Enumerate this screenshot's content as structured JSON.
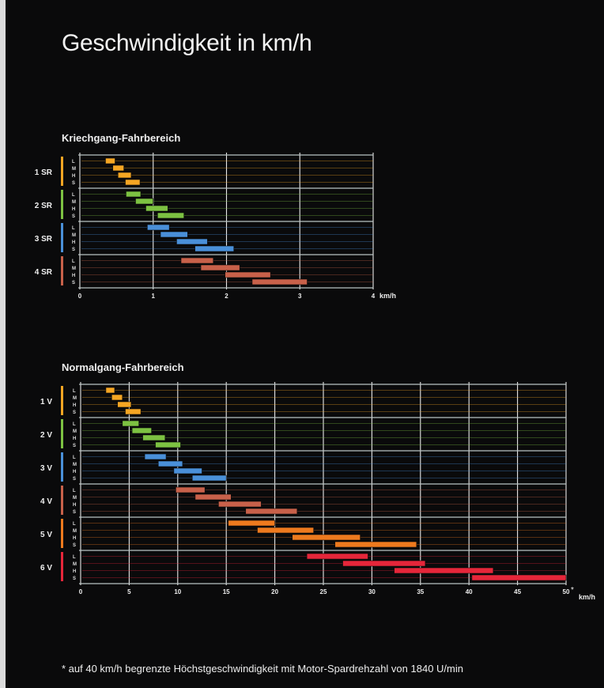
{
  "title": "Geschwindigkeit in km/h",
  "footnote": "* auf 40 km/h begrenzte Höchstgeschwindigkeit mit Motor-Spardrehzahl von 1840 U/min",
  "colors": {
    "group1": "#f5a623",
    "group2": "#7dc242",
    "group3": "#4a90d9",
    "group4": "#c8614a",
    "group5": "#ee7a1e",
    "group6": "#e6263a"
  },
  "chart_data": [
    {
      "type": "bar",
      "title": "Kriechgang-Fahrbereich",
      "unit": "km/h",
      "xlim": [
        0,
        4
      ],
      "xticks": [
        0,
        1,
        2,
        3,
        4
      ],
      "xtick_labels": [
        "0",
        "1",
        "2",
        "3",
        "4"
      ],
      "row_labels": [
        "L",
        "M",
        "H",
        "S"
      ],
      "groups": [
        {
          "label": "1 SR",
          "color": "#f5a623",
          "rows": [
            [
              0.35,
              0.48
            ],
            [
              0.45,
              0.6
            ],
            [
              0.52,
              0.7
            ],
            [
              0.62,
              0.82
            ]
          ]
        },
        {
          "label": "2 SR",
          "color": "#7dc242",
          "rows": [
            [
              0.63,
              0.83
            ],
            [
              0.76,
              1.0
            ],
            [
              0.9,
              1.2
            ],
            [
              1.06,
              1.42
            ]
          ]
        },
        {
          "label": "3 SR",
          "color": "#4a90d9",
          "rows": [
            [
              0.92,
              1.22
            ],
            [
              1.1,
              1.47
            ],
            [
              1.32,
              1.74
            ],
            [
              1.57,
              2.1
            ]
          ]
        },
        {
          "label": "4 SR",
          "color": "#c8614a",
          "rows": [
            [
              1.38,
              1.82
            ],
            [
              1.65,
              2.18
            ],
            [
              1.98,
              2.6
            ],
            [
              2.35,
              3.1
            ]
          ]
        }
      ]
    },
    {
      "type": "bar",
      "title": "Normalgang-Fahrbereich",
      "unit": "km/h",
      "xlim": [
        0,
        50
      ],
      "xticks": [
        0,
        5,
        10,
        15,
        20,
        25,
        30,
        35,
        40,
        45,
        50
      ],
      "xtick_labels": [
        "0",
        "5",
        "10",
        "15",
        "20",
        "25",
        "30",
        "35",
        "40",
        "45",
        "50"
      ],
      "xtick_note": "*",
      "row_labels": [
        "L",
        "M",
        "H",
        "S"
      ],
      "groups": [
        {
          "label": "1 V",
          "color": "#f5a623",
          "rows": [
            [
              2.6,
              3.5
            ],
            [
              3.2,
              4.3
            ],
            [
              3.8,
              5.2
            ],
            [
              4.6,
              6.2
            ]
          ]
        },
        {
          "label": "2 V",
          "color": "#7dc242",
          "rows": [
            [
              4.3,
              6.0
            ],
            [
              5.3,
              7.3
            ],
            [
              6.4,
              8.7
            ],
            [
              7.7,
              10.3
            ]
          ]
        },
        {
          "label": "3 V",
          "color": "#4a90d9",
          "rows": [
            [
              6.6,
              8.8
            ],
            [
              8.0,
              10.5
            ],
            [
              9.6,
              12.5
            ],
            [
              11.5,
              15.0
            ]
          ]
        },
        {
          "label": "4 V",
          "color": "#c8614a",
          "rows": [
            [
              9.8,
              12.8
            ],
            [
              11.8,
              15.5
            ],
            [
              14.2,
              18.6
            ],
            [
              17.0,
              22.3
            ]
          ]
        },
        {
          "label": "5 V",
          "color": "#ee7a1e",
          "rows": [
            [
              15.2,
              20.0
            ],
            [
              18.2,
              24.0
            ],
            [
              21.8,
              28.8
            ],
            [
              26.2,
              34.6
            ]
          ]
        },
        {
          "label": "6 V",
          "color": "#e6263a",
          "rows": [
            [
              23.3,
              29.6
            ],
            [
              27.0,
              35.5
            ],
            [
              32.3,
              42.5
            ],
            [
              40.3,
              50.0
            ]
          ]
        }
      ]
    }
  ]
}
